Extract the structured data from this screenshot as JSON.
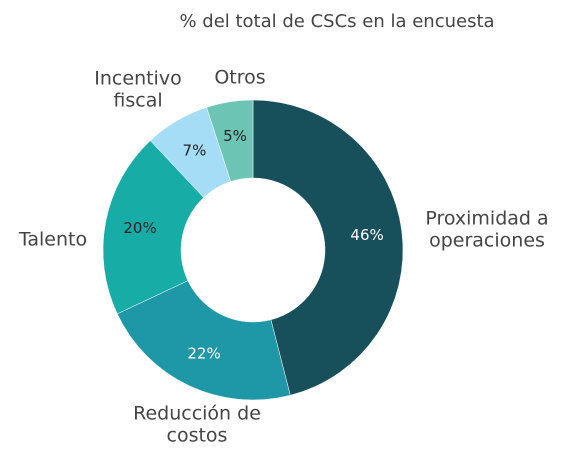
{
  "chart_data": {
    "type": "pie",
    "title": "% del total de CSCs en la encuesta",
    "categories": [
      [
        "Proximidad a",
        "operaciones"
      ],
      [
        "Reducción de",
        "costos"
      ],
      [
        "Talento"
      ],
      [
        "Incentivo",
        "fiscal"
      ],
      [
        "Otros"
      ]
    ],
    "values": [
      46,
      22,
      20,
      7,
      5
    ],
    "value_labels": [
      "46%",
      "22%",
      "20%",
      "7%",
      "5%"
    ],
    "colors": [
      "#174f5a",
      "#1e97a6",
      "#18aca6",
      "#a6ddf6",
      "#6cc4b5"
    ]
  }
}
